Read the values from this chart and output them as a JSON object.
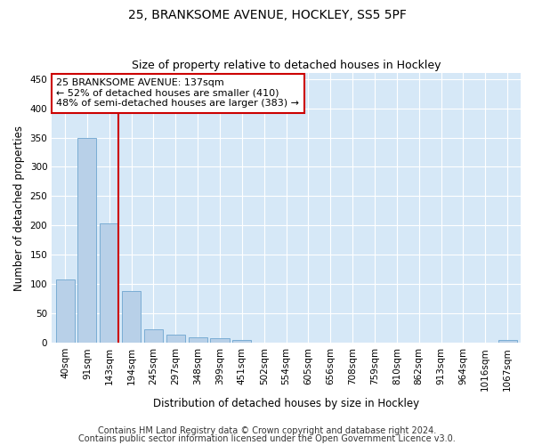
{
  "title_line1": "25, BRANKSOME AVENUE, HOCKLEY, SS5 5PF",
  "title_line2": "Size of property relative to detached houses in Hockley",
  "xlabel": "Distribution of detached houses by size in Hockley",
  "ylabel": "Number of detached properties",
  "categories": [
    "40sqm",
    "91sqm",
    "143sqm",
    "194sqm",
    "245sqm",
    "297sqm",
    "348sqm",
    "399sqm",
    "451sqm",
    "502sqm",
    "554sqm",
    "605sqm",
    "656sqm",
    "708sqm",
    "759sqm",
    "810sqm",
    "862sqm",
    "913sqm",
    "964sqm",
    "1016sqm",
    "1067sqm"
  ],
  "values": [
    108,
    350,
    203,
    89,
    23,
    14,
    9,
    8,
    5,
    0,
    0,
    0,
    0,
    0,
    0,
    0,
    0,
    0,
    0,
    0,
    5
  ],
  "bar_color": "#b8d0e8",
  "bar_edge_color": "#7aadd4",
  "vline_x": 2.425,
  "vline_color": "#cc0000",
  "annotation_text": "25 BRANKSOME AVENUE: 137sqm\n← 52% of detached houses are smaller (410)\n48% of semi-detached houses are larger (383) →",
  "annotation_box_color": "#ffffff",
  "annotation_box_edge": "#cc0000",
  "ylim": [
    0,
    460
  ],
  "yticks": [
    0,
    50,
    100,
    150,
    200,
    250,
    300,
    350,
    400,
    450
  ],
  "background_color": "#d6e8f7",
  "grid_color": "#ffffff",
  "footer_line1": "Contains HM Land Registry data © Crown copyright and database right 2024.",
  "footer_line2": "Contains public sector information licensed under the Open Government Licence v3.0.",
  "title_fontsize": 10,
  "subtitle_fontsize": 9,
  "axis_label_fontsize": 8.5,
  "tick_fontsize": 7.5,
  "annotation_fontsize": 8,
  "footer_fontsize": 7
}
